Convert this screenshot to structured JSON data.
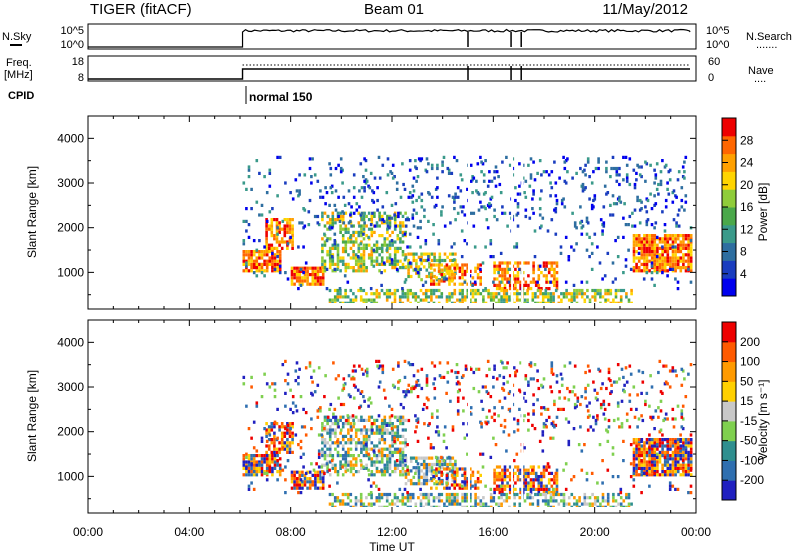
{
  "header": {
    "title": "TIGER (fitACF)",
    "beam": "Beam 01",
    "date": "11/May/2012"
  },
  "top_panels": {
    "nsky": {
      "label": "N.Sky",
      "left_ticks": [
        "10^5",
        "10^0"
      ],
      "right_ticks": [
        "10^5",
        "10^0"
      ],
      "right_label": "N.Search",
      "right_legend": "......."
    },
    "freq": {
      "label_top": "Freq.",
      "label_bottom": "[MHz]",
      "left_ticks": [
        "18",
        "8"
      ],
      "right_ticks": [
        "60",
        "0"
      ],
      "right_label": "Nave",
      "right_legend": "...."
    },
    "cpid": {
      "label": "CPID",
      "value": "normal 150"
    }
  },
  "axes": {
    "xlabel": "Time UT",
    "ylabel": "Slant Range [km]",
    "x_ticks": [
      "00:00",
      "04:00",
      "08:00",
      "12:00",
      "16:00",
      "20:00",
      "00:00"
    ]
  },
  "chart_data": [
    {
      "type": "heatmap",
      "panel": "power",
      "x_unit": "hours UT",
      "xlim": [
        0,
        24
      ],
      "ylim": [
        180,
        4500
      ],
      "y_ticks": [
        1000,
        2000,
        3000,
        4000
      ],
      "colorbar": {
        "label": "Power [dB]",
        "ticks": [
          4,
          8,
          12,
          16,
          20,
          24,
          28
        ],
        "range": [
          0,
          32
        ],
        "colors": [
          "#0000ee",
          "#1a3dbf",
          "#2e6ea0",
          "#3a9a8a",
          "#4aa84a",
          "#8fcc3a",
          "#ffd400",
          "#ffa000",
          "#ff6600",
          "#ee0000"
        ]
      },
      "data_start_hour": 6.1
    },
    {
      "type": "heatmap",
      "panel": "velocity",
      "x_unit": "hours UT",
      "xlim": [
        0,
        24
      ],
      "ylim": [
        180,
        4500
      ],
      "y_ticks": [
        1000,
        2000,
        3000,
        4000
      ],
      "colorbar": {
        "label": "Velocity [m s⁻¹]",
        "ticks": [
          200,
          100,
          50,
          15,
          -15,
          -50,
          -100,
          -200
        ],
        "colors": [
          "#2020c0",
          "#2f6fb0",
          "#2f8f8f",
          "#7fd04f",
          "#c8c8c8",
          "#ffd000",
          "#ff9a00",
          "#ff5a00",
          "#ee0000"
        ]
      },
      "data_start_hour": 6.1
    }
  ]
}
